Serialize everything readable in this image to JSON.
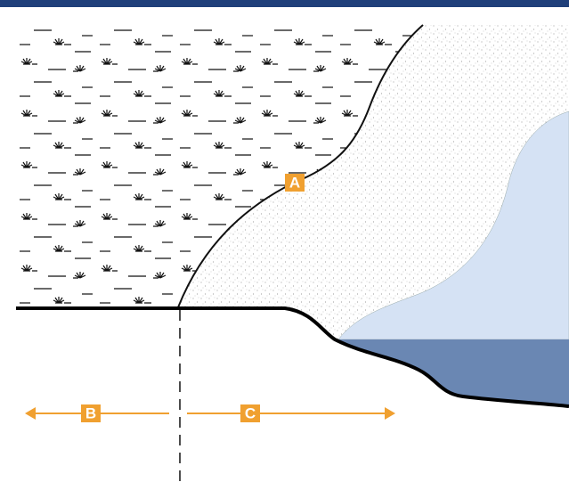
{
  "markers": [
    {
      "label": "A"
    },
    {
      "label": "B"
    },
    {
      "label": "C"
    }
  ]
}
